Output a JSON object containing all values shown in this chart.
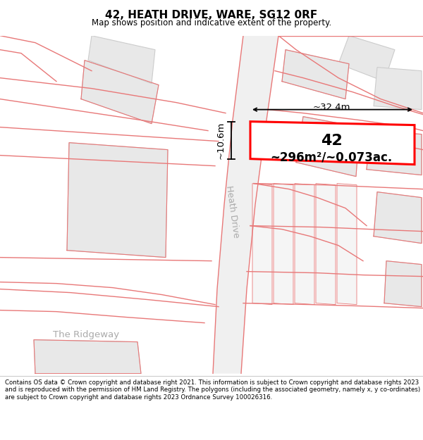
{
  "title": "42, HEATH DRIVE, WARE, SG12 0RF",
  "subtitle": "Map shows position and indicative extent of the property.",
  "footer": "Contains OS data © Crown copyright and database right 2021. This information is subject to Crown copyright and database rights 2023 and is reproduced with the permission of HM Land Registry. The polygons (including the associated geometry, namely x, y co-ordinates) are subject to Crown copyright and database rights 2023 Ordnance Survey 100026316.",
  "area_label": "~296m²/~0.073ac.",
  "width_label": "~32.4m",
  "height_label": "~10.6m",
  "number_label": "42",
  "road_label": "Heath Drive",
  "road_label2": "The Ridgeway",
  "bg_color": "#ffffff",
  "road_line_color": "#e87878",
  "building_fill": "#e8e8e8",
  "building_edge": "#cccccc",
  "plot_border": "#ff0000",
  "figsize": [
    6.0,
    6.25
  ],
  "dpi": 100
}
